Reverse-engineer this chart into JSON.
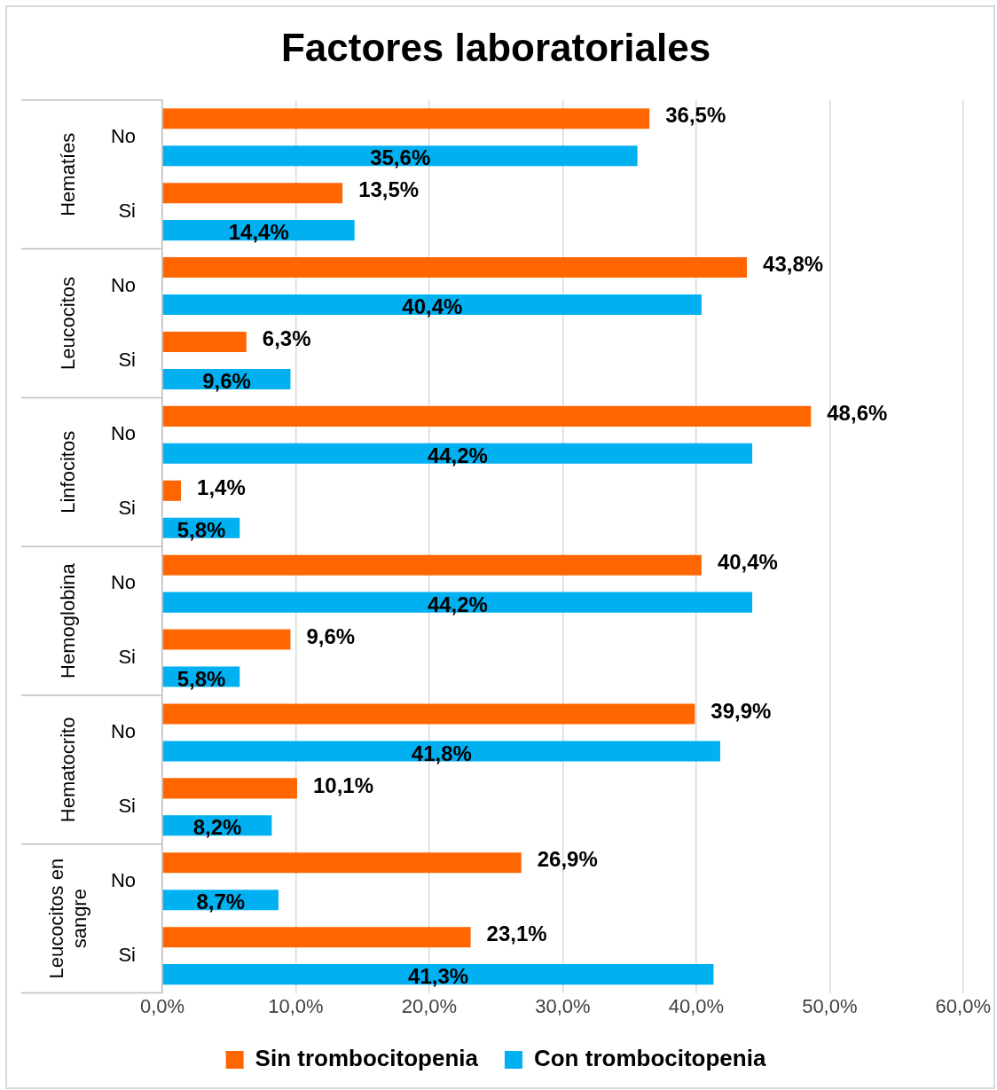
{
  "chart_data": {
    "type": "bar",
    "orientation": "horizontal",
    "title": "Factores laboratoriales",
    "categories": [
      "No",
      "Si",
      "No",
      "Si",
      "No",
      "Si",
      "No",
      "Si",
      "No",
      "Si",
      "No",
      "Si"
    ],
    "annotations": [
      "Hematíes",
      "Leucocitos",
      "Linfocitos",
      "Hemoglobina",
      "Hematocrito",
      "Leucocitos en sangre"
    ],
    "series": [
      {
        "name": "Sin trombocitopenia",
        "color": "#ff6600",
        "values": [
          36.5,
          13.5,
          43.8,
          6.3,
          48.6,
          1.4,
          40.4,
          9.6,
          39.9,
          10.1,
          26.9,
          23.1
        ],
        "value_labels": [
          "36,5%",
          "13,5%",
          "43,8%",
          "6,3%",
          "48,6%",
          "1,4%",
          "40,4%",
          "9,6%",
          "39,9%",
          "10,1%",
          "26,9%",
          "23,1%"
        ]
      },
      {
        "name": "Con trombocitopenia",
        "color": "#00b0f0",
        "values": [
          35.6,
          14.4,
          40.4,
          9.6,
          44.2,
          5.8,
          44.2,
          5.8,
          41.8,
          8.2,
          8.7,
          41.3
        ],
        "value_labels": [
          "35,6%",
          "14,4%",
          "40,4%",
          "9,6%",
          "44,2%",
          "5,8%",
          "44,2%",
          "5,8%",
          "41,8%",
          "8,2%",
          "8,7%",
          "41,3%"
        ]
      }
    ],
    "xlim": [
      0,
      60
    ],
    "xticks": [
      {
        "value": 0,
        "label": "0,0%"
      },
      {
        "value": 10,
        "label": "10,0%"
      },
      {
        "value": 20,
        "label": "20,0%"
      },
      {
        "value": 30,
        "label": "30,0%"
      },
      {
        "value": 40,
        "label": "40,0%"
      },
      {
        "value": 50,
        "label": "50,0%"
      },
      {
        "value": 60,
        "label": "60,0%"
      }
    ],
    "grid": "x",
    "legend": "bottom"
  }
}
